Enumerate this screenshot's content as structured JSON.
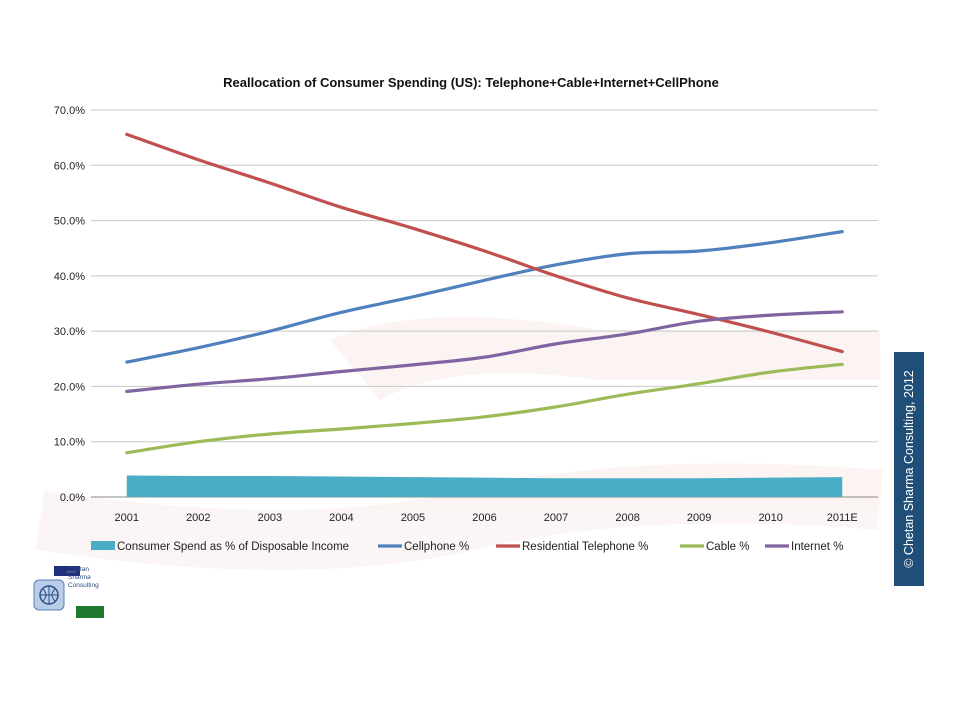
{
  "chart_data": {
    "type": "line",
    "title": "Reallocation of Consumer Spending (US): Telephone+Cable+Internet+CellPhone",
    "categories": [
      "2001",
      "2002",
      "2003",
      "2004",
      "2005",
      "2006",
      "2007",
      "2008",
      "2009",
      "2010",
      "2011E"
    ],
    "ylim": [
      0,
      70
    ],
    "yticks": [
      0,
      10,
      20,
      30,
      40,
      50,
      60,
      70
    ],
    "ytick_labels": [
      "0.0%",
      "10.0%",
      "20.0%",
      "30.0%",
      "40.0%",
      "50.0%",
      "60.0%",
      "70.0%"
    ],
    "xlabel": "",
    "ylabel": "",
    "grid": true,
    "legend_position": "bottom",
    "series": [
      {
        "name": "Consumer Spend as % of Disposable Income",
        "type": "area",
        "color": "#4bacc6",
        "values": [
          3.9,
          3.8,
          3.8,
          3.7,
          3.6,
          3.5,
          3.4,
          3.4,
          3.4,
          3.5,
          3.6
        ]
      },
      {
        "name": "Cellphone %",
        "type": "line",
        "color": "#4f81bd",
        "values": [
          24.4,
          27.0,
          30.0,
          33.4,
          36.2,
          39.2,
          42.0,
          44.0,
          44.5,
          46.0,
          48.0
        ]
      },
      {
        "name": "Residential Telephone %",
        "type": "line",
        "color": "#c0504d",
        "values": [
          65.6,
          61.0,
          56.8,
          52.4,
          48.6,
          44.5,
          40.0,
          36.0,
          33.0,
          29.8,
          26.3
        ]
      },
      {
        "name": "Cable %",
        "type": "line",
        "color": "#9bbb59",
        "values": [
          8.0,
          10.0,
          11.4,
          12.3,
          13.3,
          14.5,
          16.3,
          18.6,
          20.5,
          22.6,
          24.0
        ]
      },
      {
        "name": "Internet %",
        "type": "line",
        "color": "#8064a2",
        "values": [
          19.1,
          20.4,
          21.4,
          22.7,
          23.9,
          25.3,
          27.7,
          29.5,
          31.8,
          32.9,
          33.5
        ]
      }
    ]
  },
  "copyright": "© Chetan Sharma Consulting, 2012",
  "logo": {
    "line1": "Chetan",
    "line2": "Sharma",
    "line3": "Consulting"
  }
}
